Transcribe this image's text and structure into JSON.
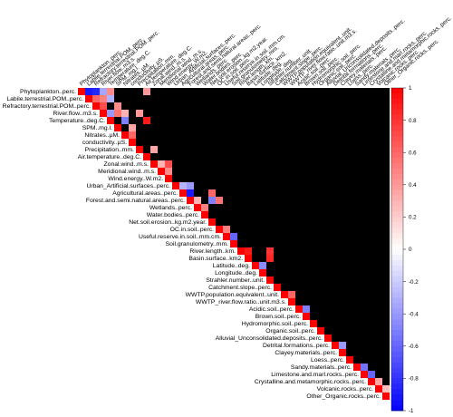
{
  "chart_data": {
    "type": "heatmap",
    "title": "",
    "subtitle": "",
    "layout": "upper-triangle",
    "variables": [
      "Phytoplankton..perc.",
      "Labile.terrestrial.POM..perc.",
      "Refractory.terrestrial.POM..perc.",
      "River.flow..m3.s.",
      "Temperature..deg.C.",
      "SPM..mg.l.",
      "Nitrates..µM.",
      "conductivity..µS.",
      "Precipitation..mm.",
      "Air.temperature..deg.C.",
      "Zonal.wind..m.s.",
      "Meridional.wind..m.s.",
      "Wind.energy..W.m2.",
      "Urban_Artificial.surfaces..perc.",
      "Agricultural.areas..perc.",
      "Forest.and.semi.natural.areas..perc.",
      "Wetlands..perc.",
      "Water.bodies..perc.",
      "Net.soil.erosion..kg.m2.year.",
      "OC.in.soil..perc.",
      "Useful.reserve.in.soil..mm.cm.",
      "Soil.granulometry..mm.",
      "River.length..km.",
      "Basin.surface..km2.",
      "Latitude..deg.",
      "Longitude..deg.",
      "Strahler.number..unit.",
      "Catchment.slope..perc.",
      "WWTP.population.equivalent..unit.",
      "WWTP_river.flow.ratio..unit.m3.s.",
      "Acidic.soil..perc.",
      "Brown.soil..perc.",
      "Hydromorphic.soil..perc.",
      "Organic.soil..perc.",
      "Alluvial_Unconsolidated.deposits..perc.",
      "Detrital.formations..perc.",
      "Clayey.materials..perc.",
      "Loess..perc.",
      "Sandy.materials..perc.",
      "Limestone.and.marl.rocks..perc.",
      "Crystalline.and.metamorphic.rocks..perc.",
      "Volcanic.rocks..perc.",
      "Other_Organic.rocks..perc."
    ],
    "values_note_blank_cells": "non-significant correlations drawn as black cells (null)",
    "correlation_pairs": [
      {
        "i": 0,
        "j": 1,
        "r": -0.9
      },
      {
        "i": 0,
        "j": 2,
        "r": -0.85
      },
      {
        "i": 1,
        "j": 2,
        "r": 0.6
      },
      {
        "i": 0,
        "j": 3,
        "r": -0.35
      },
      {
        "i": 1,
        "j": 3,
        "r": 0.5
      },
      {
        "i": 2,
        "j": 3,
        "r": 0.7
      },
      {
        "i": 0,
        "j": 4,
        "r": 0.45
      },
      {
        "i": 1,
        "j": 4,
        "r": -0.3
      },
      {
        "i": 3,
        "j": 4,
        "r": -0.4
      },
      {
        "i": 3,
        "j": 5,
        "r": 0.55
      },
      {
        "i": 2,
        "j": 5,
        "r": 0.45
      },
      {
        "i": 4,
        "j": 6,
        "r": -0.5
      },
      {
        "i": 3,
        "j": 6,
        "r": 0.3
      },
      {
        "i": 5,
        "j": 7,
        "r": 0.35
      },
      {
        "i": 6,
        "j": 7,
        "r": 0.6
      },
      {
        "i": 3,
        "j": 8,
        "r": 0.4
      },
      {
        "i": 4,
        "j": 9,
        "r": 0.9
      },
      {
        "i": 0,
        "j": 9,
        "r": 0.4
      },
      {
        "i": 8,
        "j": 10,
        "r": 0.35
      },
      {
        "i": 10,
        "j": 11,
        "r": 0.3
      },
      {
        "i": 10,
        "j": 12,
        "r": 0.7
      },
      {
        "i": 11,
        "j": 12,
        "r": 0.45
      },
      {
        "i": 13,
        "j": 14,
        "r": -0.3
      },
      {
        "i": 14,
        "j": 15,
        "r": -0.9
      },
      {
        "i": 13,
        "j": 15,
        "r": -0.4
      },
      {
        "i": 15,
        "j": 16,
        "r": 0.3
      },
      {
        "i": 16,
        "j": 17,
        "r": 0.5
      },
      {
        "i": 14,
        "j": 18,
        "r": 0.6
      },
      {
        "i": 15,
        "j": 18,
        "r": -0.5
      },
      {
        "i": 15,
        "j": 19,
        "r": 0.55
      },
      {
        "i": 19,
        "j": 20,
        "r": 0.5
      },
      {
        "i": 20,
        "j": 21,
        "r": -0.6
      },
      {
        "i": 22,
        "j": 23,
        "r": 0.9
      },
      {
        "i": 24,
        "j": 25,
        "r": -0.45
      },
      {
        "i": 22,
        "j": 26,
        "r": 0.8
      },
      {
        "i": 23,
        "j": 26,
        "r": 0.85
      },
      {
        "i": 28,
        "j": 29,
        "r": 0.6
      },
      {
        "i": 30,
        "j": 31,
        "r": -0.5
      },
      {
        "i": 35,
        "j": 36,
        "r": -0.4
      },
      {
        "i": 38,
        "j": 39,
        "r": -0.55
      },
      {
        "i": 39,
        "j": 40,
        "r": -0.6
      },
      {
        "i": 40,
        "j": 41,
        "r": 0.35
      },
      {
        "i": 41,
        "j": 42,
        "r": 0.25
      }
    ],
    "diagonal": 1,
    "color_scale": {
      "min": -1,
      "max": 1,
      "low": "#0000ff",
      "mid": "#ffffff",
      "high": "#ff0000",
      "missing": "#000000"
    },
    "colorbar_ticks": [
      1,
      0.8,
      0.6,
      0.4,
      0.2,
      0,
      -0.2,
      -0.4,
      -0.6,
      -0.8,
      -1
    ],
    "legend": "right"
  }
}
